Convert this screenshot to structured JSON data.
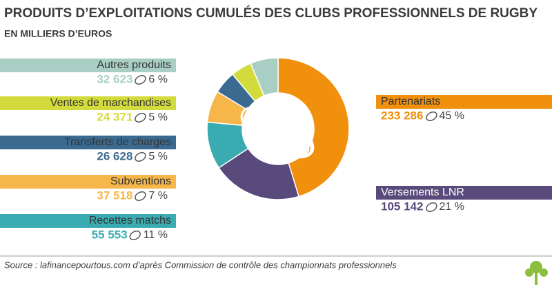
{
  "chart_data": {
    "type": "donut",
    "title": "PRODUITS D’EXPLOITATIONS CUMULÉS DES CLUBS PROFESSIONNELS DE RUGBY",
    "subtitle": "EN MILLIERS D’EUROS",
    "source": "Source : lafinancepourtous.com d’après Commission de contrôle des championnats professionnels",
    "categories": [
      "Partenariats",
      "Versements LNR",
      "Recettes matchs",
      "Subventions",
      "Transferts de charges",
      "Ventes de marchandises",
      "Autres produits"
    ],
    "values": [
      233286,
      105142,
      55553,
      37518,
      26628,
      24371,
      32623
    ],
    "value_labels": [
      "233 286",
      "105 142",
      "55 553",
      "37 518",
      "26 628",
      "24 371",
      "32 623"
    ],
    "percent_labels": [
      "45 %",
      "21 %",
      "11 %",
      "7 %",
      "5 %",
      "5 %",
      "6 %"
    ],
    "colors": [
      "#f0900c",
      "#594a7c",
      "#3aabb0",
      "#f7b64a",
      "#3b6a91",
      "#d3db3c",
      "#a9cfc5"
    ]
  }
}
